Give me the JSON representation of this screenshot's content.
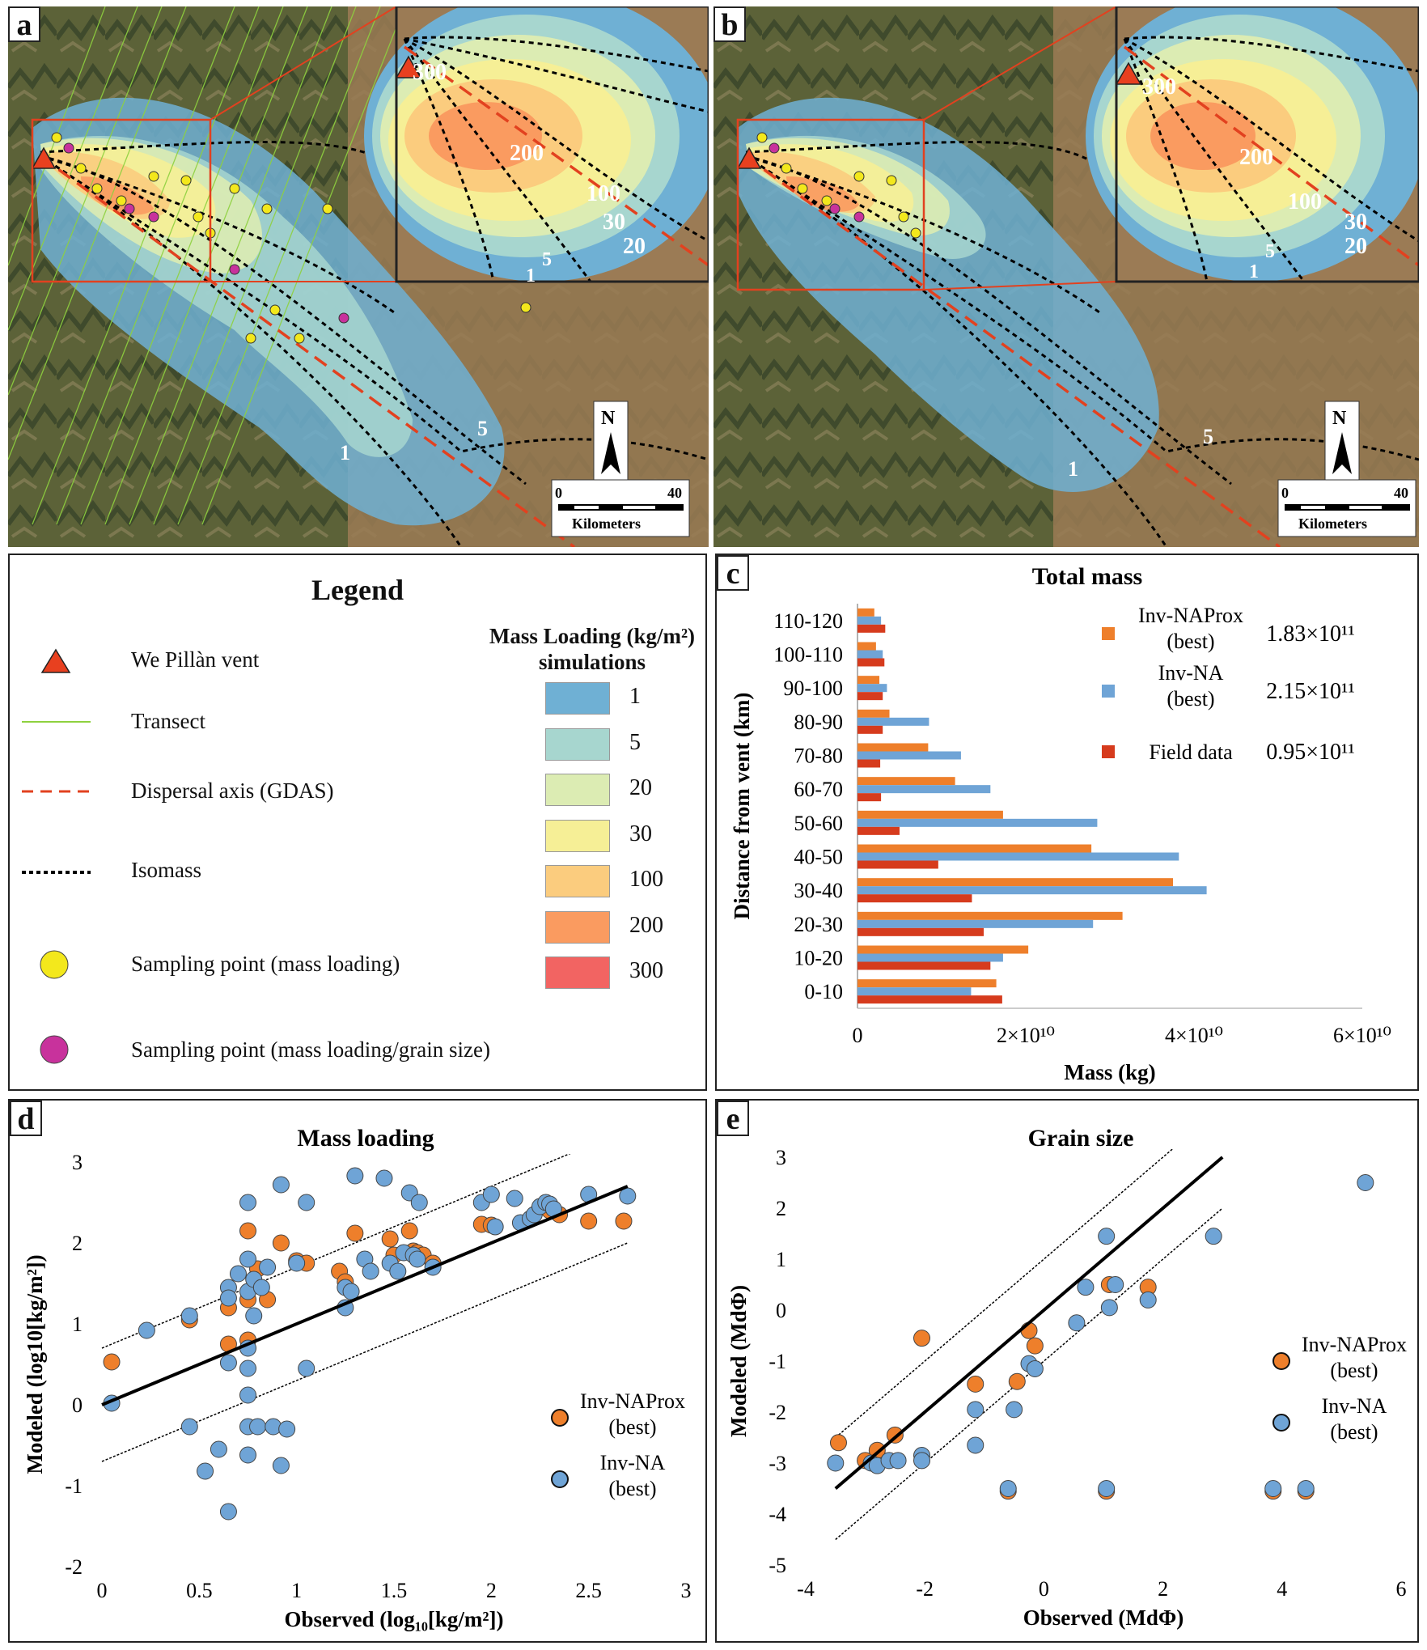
{
  "figure": {
    "panel_labels": [
      "a",
      "b",
      "c",
      "d",
      "e"
    ]
  },
  "maps": {
    "inset_labels_a": [
      "300",
      "200",
      "100",
      "30",
      "20",
      "5",
      "1"
    ],
    "main_labels_a": [
      "1",
      "5"
    ],
    "inset_labels_b": [
      "300",
      "200",
      "100",
      "30",
      "20",
      "5",
      "1"
    ],
    "main_labels_b": [
      "1",
      "5"
    ],
    "north": "N",
    "scale_min": "0",
    "scale_max": "40",
    "scale_unit": "Kilometers"
  },
  "legend": {
    "title": "Legend",
    "items": [
      {
        "symbol": "red-triangle",
        "label": "We Pillàn vent"
      },
      {
        "symbol": "green-line",
        "label": "Transect"
      },
      {
        "symbol": "red-dash",
        "label": "Dispersal axis (GDAS)"
      },
      {
        "symbol": "black-dots",
        "label": "Isomass"
      },
      {
        "symbol": "yellow-circle",
        "label": "Sampling point (mass loading)"
      },
      {
        "symbol": "magenta-circle",
        "label": "Sampling point (mass loading/grain size)"
      }
    ],
    "mass_loading_title_line1": "Mass Loading (kg/m²)",
    "mass_loading_title_line2": "simulations",
    "classes": [
      {
        "value": "1",
        "color": "#6fb0d4"
      },
      {
        "value": "5",
        "color": "#a7d6cf"
      },
      {
        "value": "20",
        "color": "#dcecb3"
      },
      {
        "value": "30",
        "color": "#f6ef96"
      },
      {
        "value": "100",
        "color": "#fbcc7e"
      },
      {
        "value": "200",
        "color": "#fa9b60"
      },
      {
        "value": "300",
        "color": "#f26462"
      }
    ]
  },
  "colors": {
    "orange": "#ee7f2b",
    "blue": "#6fa4d6",
    "red": "#d63b1d",
    "yellow": "#f3e81c",
    "magenta": "#c8329c",
    "green": "#8ed13f"
  },
  "chart_data": [
    {
      "type": "bar",
      "orientation": "horizontal",
      "title": "Total mass",
      "xlabel": "Mass (kg)",
      "ylabel": "Distance from vent (km)",
      "xlim": [
        0,
        60000000000.0
      ],
      "xticks": [
        "0",
        "2×10¹⁰",
        "4×10¹⁰",
        "6×10¹⁰"
      ],
      "categories": [
        "0-10",
        "10-20",
        "20-30",
        "30-40",
        "40-50",
        "50-60",
        "60-70",
        "70-80",
        "80-90",
        "90-100",
        "100-110",
        "110-120"
      ],
      "series": [
        {
          "name": "Inv-NAProx (best)",
          "total": "1.83×10¹¹",
          "values": [
            16500000000.0,
            20300000000.0,
            31500000000.0,
            37500000000.0,
            27800000000.0,
            17300000000.0,
            11600000000.0,
            8400000000.0,
            3800000000.0,
            2600000000.0,
            2200000000.0,
            2000000000.0
          ]
        },
        {
          "name": "Inv-NA (best)",
          "total": "2.15×10¹¹",
          "values": [
            13500000000.0,
            17300000000.0,
            28000000000.0,
            41500000000.0,
            38200000000.0,
            28500000000.0,
            15800000000.0,
            12300000000.0,
            8500000000.0,
            3500000000.0,
            3000000000.0,
            2800000000.0
          ]
        },
        {
          "name": "Field data",
          "total": "0.95×10¹¹",
          "values": [
            17200000000.0,
            15800000000.0,
            15000000000.0,
            13600000000.0,
            9600000000.0,
            5000000000.0,
            2800000000.0,
            2700000000.0,
            3000000000.0,
            3000000000.0,
            3200000000.0,
            3300000000.0
          ]
        }
      ]
    },
    {
      "type": "scatter",
      "title": "Mass loading",
      "xlabel": "Observed (log₁₀[kg/m²])",
      "ylabel": "Modeled (log10[kg/m²])",
      "xlim": [
        0,
        3
      ],
      "ylim": [
        -2,
        3
      ],
      "xticks": [
        "0",
        "0.5",
        "1",
        "1.5",
        "2",
        "2.5",
        "3"
      ],
      "yticks": [
        "-2",
        "-1",
        "0",
        "1",
        "2",
        "3"
      ],
      "fit_line": [
        [
          0,
          0
        ],
        [
          2.7,
          2.7
        ]
      ],
      "band_offset": 0.7,
      "series": [
        {
          "name": "Inv-NAProx (best)",
          "points": [
            [
              0.05,
              0.53
            ],
            [
              0.45,
              1.05
            ],
            [
              0.65,
              1.2
            ],
            [
              0.65,
              0.75
            ],
            [
              0.75,
              2.15
            ],
            [
              0.75,
              1.3
            ],
            [
              0.75,
              0.8
            ],
            [
              0.8,
              1.68
            ],
            [
              0.85,
              1.3
            ],
            [
              0.92,
              2.0
            ],
            [
              1.0,
              1.78
            ],
            [
              1.05,
              1.75
            ],
            [
              1.22,
              1.65
            ],
            [
              1.25,
              1.52
            ],
            [
              1.3,
              2.12
            ],
            [
              1.48,
              2.05
            ],
            [
              1.5,
              1.85
            ],
            [
              1.58,
              2.15
            ],
            [
              1.6,
              1.9
            ],
            [
              1.62,
              1.88
            ],
            [
              1.65,
              1.85
            ],
            [
              1.7,
              1.75
            ],
            [
              1.95,
              2.23
            ],
            [
              2.0,
              2.22
            ],
            [
              2.3,
              2.4
            ],
            [
              2.35,
              2.35
            ],
            [
              2.5,
              2.27
            ],
            [
              2.68,
              2.27
            ]
          ]
        },
        {
          "name": "Inv-NA (best)",
          "points": [
            [
              0.05,
              0.02
            ],
            [
              0.23,
              0.92
            ],
            [
              0.45,
              1.1
            ],
            [
              0.45,
              -0.27
            ],
            [
              0.53,
              -0.82
            ],
            [
              0.6,
              -0.55
            ],
            [
              0.65,
              1.45
            ],
            [
              0.65,
              1.32
            ],
            [
              0.65,
              0.52
            ],
            [
              0.65,
              -1.32
            ],
            [
              0.7,
              1.62
            ],
            [
              0.75,
              2.5
            ],
            [
              0.75,
              1.8
            ],
            [
              0.75,
              1.4
            ],
            [
              0.75,
              0.7
            ],
            [
              0.75,
              0.45
            ],
            [
              0.75,
              0.12
            ],
            [
              0.75,
              -0.27
            ],
            [
              0.75,
              -0.62
            ],
            [
              0.78,
              1.55
            ],
            [
              0.78,
              1.1
            ],
            [
              0.8,
              -0.27
            ],
            [
              0.82,
              1.45
            ],
            [
              0.85,
              1.7
            ],
            [
              0.88,
              -0.27
            ],
            [
              0.92,
              2.72
            ],
            [
              0.92,
              -0.75
            ],
            [
              0.95,
              -0.3
            ],
            [
              1.0,
              1.75
            ],
            [
              1.05,
              2.5
            ],
            [
              1.05,
              0.45
            ],
            [
              1.25,
              1.2
            ],
            [
              1.25,
              1.45
            ],
            [
              1.28,
              1.4
            ],
            [
              1.3,
              2.83
            ],
            [
              1.35,
              1.8
            ],
            [
              1.38,
              1.65
            ],
            [
              1.45,
              2.8
            ],
            [
              1.48,
              1.75
            ],
            [
              1.52,
              1.65
            ],
            [
              1.55,
              1.88
            ],
            [
              1.58,
              2.62
            ],
            [
              1.6,
              1.85
            ],
            [
              1.62,
              1.8
            ],
            [
              1.63,
              2.5
            ],
            [
              1.7,
              1.7
            ],
            [
              1.95,
              2.5
            ],
            [
              2.0,
              2.6
            ],
            [
              2.02,
              2.2
            ],
            [
              2.12,
              2.55
            ],
            [
              2.15,
              2.25
            ],
            [
              2.2,
              2.3
            ],
            [
              2.22,
              2.35
            ],
            [
              2.25,
              2.45
            ],
            [
              2.28,
              2.5
            ],
            [
              2.3,
              2.48
            ],
            [
              2.32,
              2.42
            ],
            [
              2.5,
              2.6
            ],
            [
              2.7,
              2.58
            ]
          ]
        }
      ]
    },
    {
      "type": "scatter",
      "title": "Grain size",
      "xlabel": "Observed (MdΦ)",
      "ylabel": "Modeled (MdΦ)",
      "xlim": [
        -4,
        6
      ],
      "ylim": [
        -5,
        3
      ],
      "xticks": [
        "-4",
        "-2",
        "0",
        "2",
        "4",
        "6"
      ],
      "yticks": [
        "-5",
        "-4",
        "-3",
        "-2",
        "-1",
        "0",
        "1",
        "2",
        "3"
      ],
      "fit_line": [
        [
          -3.5,
          -3.5
        ],
        [
          3.0,
          3.0
        ]
      ],
      "band_offset": 1.0,
      "series": [
        {
          "name": "Inv-NAProx (best)",
          "points": [
            [
              -3.45,
              -2.6
            ],
            [
              -3.0,
              -2.95
            ],
            [
              -2.8,
              -2.75
            ],
            [
              -2.5,
              -2.45
            ],
            [
              -2.05,
              -0.55
            ],
            [
              -1.15,
              -1.45
            ],
            [
              -0.45,
              -1.4
            ],
            [
              -0.25,
              -0.4
            ],
            [
              -0.15,
              -0.7
            ],
            [
              -0.6,
              -3.55
            ],
            [
              1.05,
              -3.55
            ],
            [
              1.1,
              0.5
            ],
            [
              1.75,
              0.45
            ],
            [
              3.85,
              -3.55
            ],
            [
              4.4,
              -3.55
            ]
          ]
        },
        {
          "name": "Inv-NA (best)",
          "points": [
            [
              -3.5,
              -3.0
            ],
            [
              -2.9,
              -3.0
            ],
            [
              -2.8,
              -3.05
            ],
            [
              -2.6,
              -2.95
            ],
            [
              -2.45,
              -2.95
            ],
            [
              -2.05,
              -2.85
            ],
            [
              -2.05,
              -2.95
            ],
            [
              -1.15,
              -1.95
            ],
            [
              -1.15,
              -2.65
            ],
            [
              -0.5,
              -1.95
            ],
            [
              -0.25,
              -1.05
            ],
            [
              -0.15,
              -1.15
            ],
            [
              -0.6,
              -3.5
            ],
            [
              0.55,
              -0.25
            ],
            [
              0.7,
              0.45
            ],
            [
              1.05,
              1.45
            ],
            [
              1.1,
              0.05
            ],
            [
              1.2,
              0.5
            ],
            [
              1.75,
              0.2
            ],
            [
              2.85,
              1.45
            ],
            [
              1.05,
              -3.5
            ],
            [
              3.85,
              -3.5
            ],
            [
              4.4,
              -3.5
            ],
            [
              5.4,
              2.5
            ]
          ]
        }
      ]
    }
  ]
}
